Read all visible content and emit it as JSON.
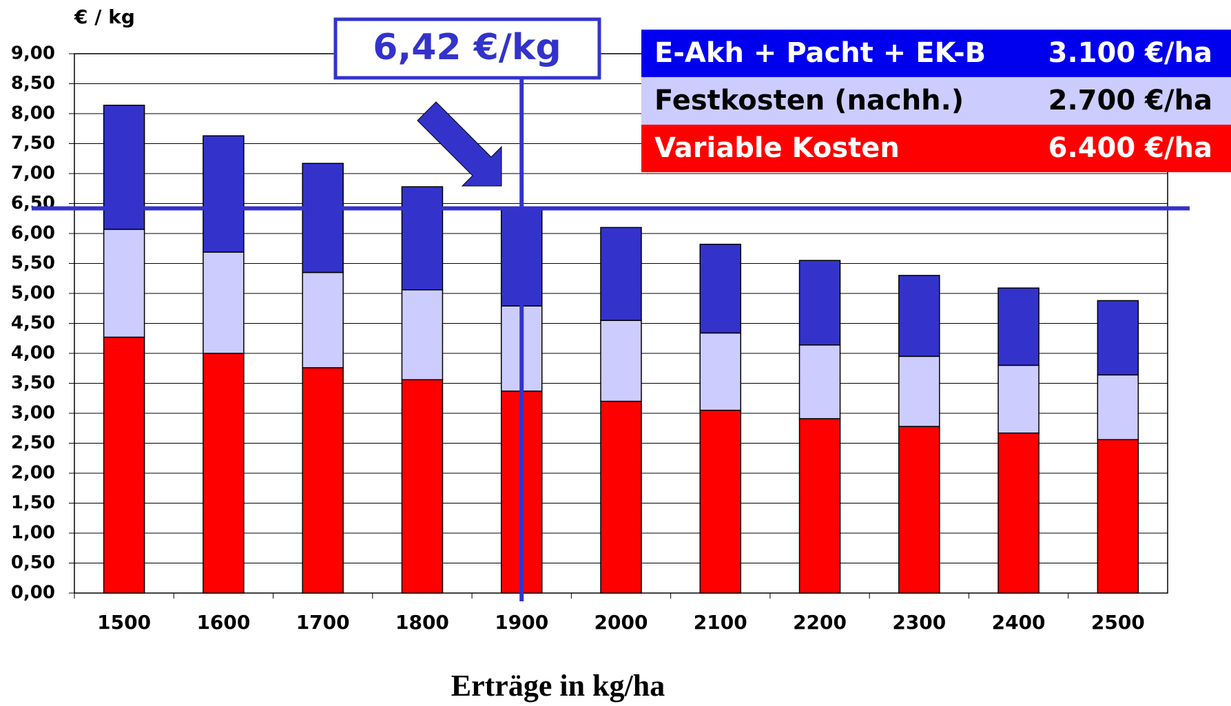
{
  "chart_data": {
    "type": "stacked_bar",
    "y_label": "€ / kg",
    "x_label": "Erträge in kg/ha",
    "categories": [
      "1500",
      "1600",
      "1700",
      "1800",
      "1900",
      "2000",
      "2100",
      "2200",
      "2300",
      "2400",
      "2500"
    ],
    "series": [
      {
        "name": "Variable Kosten",
        "cost_label": "6.400 €/ha",
        "color": "#ff0000",
        "values": [
          4.27,
          4.0,
          3.76,
          3.56,
          3.37,
          3.2,
          3.05,
          2.91,
          2.78,
          2.67,
          2.56
        ]
      },
      {
        "name": "Festkosten (nachh.)",
        "cost_label": "2.700 €/ha",
        "color": "#ccccff",
        "values": [
          1.8,
          1.69,
          1.59,
          1.5,
          1.42,
          1.35,
          1.29,
          1.23,
          1.17,
          1.13,
          1.08
        ]
      },
      {
        "name": "E-Akh + Pacht + EK-B",
        "cost_label": "3.100 €/ha",
        "color": "#3333cc",
        "values": [
          2.07,
          1.94,
          1.82,
          1.72,
          1.63,
          1.55,
          1.48,
          1.41,
          1.35,
          1.29,
          1.24
        ]
      }
    ],
    "annotation": {
      "value": 6.42,
      "label": "6,42 €/kg"
    },
    "ylim": [
      0,
      9
    ],
    "yticks": [
      {
        "value": 0,
        "label": "0,00"
      },
      {
        "value": 0.5,
        "label": "0,50"
      },
      {
        "value": 1,
        "label": "1,00"
      },
      {
        "value": 1.5,
        "label": "1,50"
      },
      {
        "value": 2,
        "label": "2,00"
      },
      {
        "value": 2.5,
        "label": "2,50"
      },
      {
        "value": 3,
        "label": "3,00"
      },
      {
        "value": 3.5,
        "label": "3,50"
      },
      {
        "value": 4,
        "label": "4,00"
      },
      {
        "value": 4.5,
        "label": "4,50"
      },
      {
        "value": 5,
        "label": "5,00"
      },
      {
        "value": 5.5,
        "label": "5,50"
      },
      {
        "value": 6,
        "label": "6,00"
      },
      {
        "value": 6.5,
        "label": "6,50"
      },
      {
        "value": 7,
        "label": "7,00"
      },
      {
        "value": 7.5,
        "label": "7,50"
      },
      {
        "value": 8,
        "label": "8,00"
      },
      {
        "value": 8.5,
        "label": "8,50"
      },
      {
        "value": 9,
        "label": "9,00"
      }
    ],
    "grid": true
  }
}
